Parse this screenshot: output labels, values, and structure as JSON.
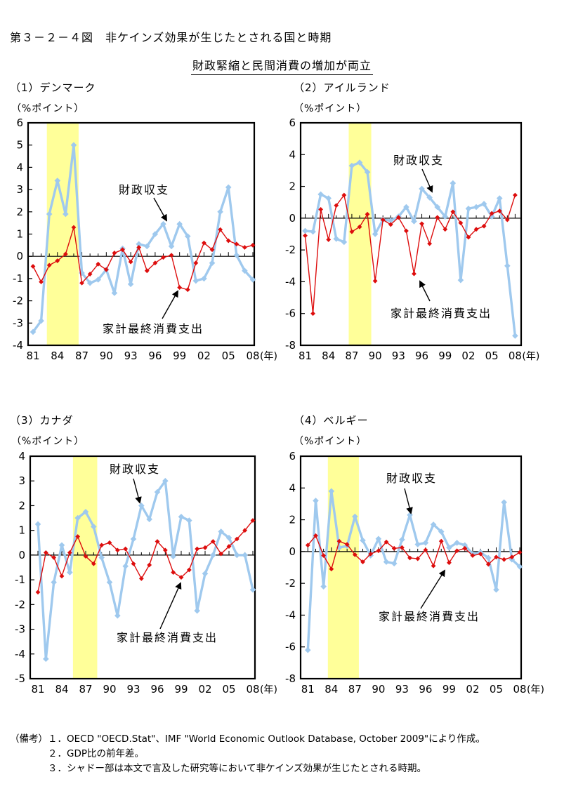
{
  "page": {
    "title": "第３－２－４図　非ケインズ効果が生じたとされる国と時期",
    "subtitle": "財政緊縮と民間消費の増加が両立"
  },
  "notes": {
    "prefix": "（備考）",
    "lines": [
      "１．OECD \"OECD.Stat\"、IMF \"World Economic Outlook Database, October 2009\"により作成。",
      "２．GDP比の前年差。",
      "３．シャドー部は本文で言及した研究等において非ケインズ効果が生じたとされる時期。"
    ]
  },
  "chart_data": [
    {
      "type": "line",
      "panel_title": "（1）デンマーク",
      "unit_label": "（%ポイント）",
      "ylim": [
        -4,
        6
      ],
      "ytick_step": 1,
      "x_tick_labels": [
        "81",
        "84",
        "87",
        "90",
        "93",
        "96",
        "99",
        "02",
        "05",
        "08"
      ],
      "x_suffix": "(年)",
      "grid": false,
      "years": [
        1981,
        1982,
        1983,
        1984,
        1985,
        1986,
        1987,
        1988,
        1989,
        1990,
        1991,
        1992,
        1993,
        1994,
        1995,
        1996,
        1997,
        1998,
        1999,
        2000,
        2001,
        2002,
        2003,
        2004,
        2005,
        2006,
        2007,
        2008
      ],
      "shaded_period": {
        "from": 1982.7,
        "to": 1986.6,
        "color": "#ffff99"
      },
      "series": [
        {
          "name": "財政収支",
          "color": "#9fc9ee",
          "values": [
            -3.4,
            -2.9,
            1.9,
            3.4,
            1.9,
            5.0,
            -0.75,
            -1.2,
            -1.05,
            -0.6,
            -1.65,
            0.35,
            -1.25,
            0.55,
            0.45,
            1.0,
            1.45,
            0.45,
            1.45,
            0.9,
            -1.1,
            -1.0,
            -0.3,
            2.0,
            3.1,
            0.05,
            -0.65,
            -1.05
          ]
        },
        {
          "name": "家計最終消費支出",
          "color": "#dd0d0d",
          "values": [
            -0.45,
            -1.15,
            -0.4,
            -0.2,
            0.1,
            1.3,
            -1.2,
            -0.8,
            -0.35,
            -0.6,
            0.15,
            0.3,
            -0.25,
            0.4,
            -0.65,
            -0.3,
            -0.05,
            0.05,
            -1.4,
            -1.5,
            -0.3,
            0.6,
            0.3,
            1.2,
            0.7,
            0.55,
            0.4,
            0.5
          ]
        }
      ]
    },
    {
      "type": "line",
      "panel_title": "（2）アイルランド",
      "unit_label": "（%ポイント）",
      "ylim": [
        -8,
        6
      ],
      "ytick_step": 2,
      "x_tick_labels": [
        "81",
        "84",
        "87",
        "90",
        "93",
        "96",
        "99",
        "02",
        "05",
        "08"
      ],
      "x_suffix": "(年)",
      "grid": false,
      "years": [
        1981,
        1982,
        1983,
        1984,
        1985,
        1986,
        1987,
        1988,
        1989,
        1990,
        1991,
        1992,
        1993,
        1994,
        1995,
        1996,
        1997,
        1998,
        1999,
        2000,
        2001,
        2002,
        2003,
        2004,
        2005,
        2006,
        2007,
        2008
      ],
      "shaded_period": {
        "from": 1986.6,
        "to": 1989.5,
        "color": "#ffff99"
      },
      "series": [
        {
          "name": "財政収支",
          "color": "#9fc9ee",
          "values": [
            -0.8,
            -0.85,
            1.5,
            1.25,
            -1.3,
            -1.5,
            3.3,
            3.5,
            2.9,
            -1.0,
            -0.1,
            -0.15,
            0.1,
            0.7,
            -0.2,
            1.85,
            1.3,
            0.7,
            0.1,
            2.2,
            -3.9,
            0.6,
            0.7,
            0.9,
            0.1,
            1.25,
            -3.0,
            -7.4
          ]
        },
        {
          "name": "家計最終消費支出",
          "color": "#dd0d0d",
          "values": [
            -1.1,
            -6.0,
            0.55,
            -1.35,
            0.8,
            1.45,
            -0.85,
            -0.55,
            0.25,
            -3.95,
            -0.1,
            -0.4,
            0.05,
            -0.8,
            -3.5,
            -0.35,
            -1.6,
            0.05,
            -0.7,
            0.4,
            -0.3,
            -1.2,
            -0.7,
            -0.5,
            0.3,
            0.45,
            -0.1,
            1.45
          ]
        }
      ]
    },
    {
      "type": "line",
      "panel_title": "（3）カナダ",
      "unit_label": "（%ポイント）",
      "ylim": [
        -5,
        4
      ],
      "ytick_step": 1,
      "x_tick_labels": [
        "81",
        "84",
        "87",
        "90",
        "93",
        "96",
        "99",
        "02",
        "05",
        "08"
      ],
      "x_suffix": "(年)",
      "grid": false,
      "years": [
        1981,
        1982,
        1983,
        1984,
        1985,
        1986,
        1987,
        1988,
        1989,
        1990,
        1991,
        1992,
        1993,
        1994,
        1995,
        1996,
        1997,
        1998,
        1999,
        2000,
        2001,
        2002,
        2003,
        2004,
        2005,
        2006,
        2007,
        2008
      ],
      "shaded_period": {
        "from": 1985.4,
        "to": 1988.45,
        "color": "#ffff99"
      },
      "series": [
        {
          "name": "財政収支",
          "color": "#9fc9ee",
          "values": [
            1.25,
            -4.2,
            -1.1,
            0.4,
            -0.7,
            1.5,
            1.75,
            1.15,
            -0.1,
            -1.1,
            -2.45,
            -0.45,
            0.65,
            2.0,
            1.45,
            2.55,
            3.0,
            -0.05,
            1.55,
            1.4,
            -2.25,
            -0.75,
            0.0,
            0.95,
            0.7,
            0.0,
            0.0,
            -1.4
          ]
        },
        {
          "name": "家計最終消費支出",
          "color": "#dd0d0d",
          "values": [
            -1.5,
            0.1,
            -0.1,
            -0.85,
            0.1,
            0.75,
            -0.05,
            -0.35,
            0.4,
            0.5,
            0.2,
            0.25,
            -0.35,
            -0.95,
            -0.4,
            0.55,
            0.2,
            -0.7,
            -0.9,
            -0.6,
            0.25,
            0.3,
            0.55,
            0.05,
            0.35,
            0.65,
            1.0,
            1.4
          ]
        }
      ]
    },
    {
      "type": "line",
      "panel_title": "（4）ベルギー",
      "unit_label": "（%ポイント）",
      "ylim": [
        -8,
        6
      ],
      "ytick_step": 2,
      "x_tick_labels": [
        "81",
        "84",
        "87",
        "90",
        "93",
        "96",
        "99",
        "02",
        "05",
        "08"
      ],
      "x_suffix": "(年)",
      "grid": false,
      "years": [
        1981,
        1982,
        1983,
        1984,
        1985,
        1986,
        1987,
        1988,
        1989,
        1990,
        1991,
        1992,
        1993,
        1994,
        1995,
        1996,
        1997,
        1998,
        1999,
        2000,
        2001,
        2002,
        2003,
        2004,
        2005,
        2006,
        2007,
        2008
      ],
      "shaded_period": {
        "from": 1983.55,
        "to": 1987.5,
        "color": "#ffff99"
      },
      "series": [
        {
          "name": "財政収支",
          "color": "#9fc9ee",
          "values": [
            -6.2,
            3.2,
            -2.2,
            3.8,
            0.25,
            0.35,
            2.2,
            0.7,
            -0.25,
            0.8,
            -0.65,
            -0.75,
            0.75,
            2.3,
            0.45,
            0.55,
            1.7,
            1.25,
            0.25,
            0.55,
            0.4,
            -0.15,
            -0.05,
            -0.4,
            -2.4,
            3.1,
            -0.5,
            -0.95
          ]
        },
        {
          "name": "家計最終消費支出",
          "color": "#dd0d0d",
          "values": [
            0.4,
            1.0,
            -0.25,
            -1.1,
            0.65,
            0.45,
            -0.2,
            -0.65,
            -0.15,
            0.05,
            0.6,
            0.2,
            0.25,
            -0.4,
            -0.45,
            0.1,
            -0.9,
            0.65,
            -0.7,
            0.05,
            0.2,
            -0.25,
            -0.15,
            -0.8,
            -0.35,
            -0.5,
            -0.35,
            -0.05
          ]
        }
      ]
    }
  ]
}
